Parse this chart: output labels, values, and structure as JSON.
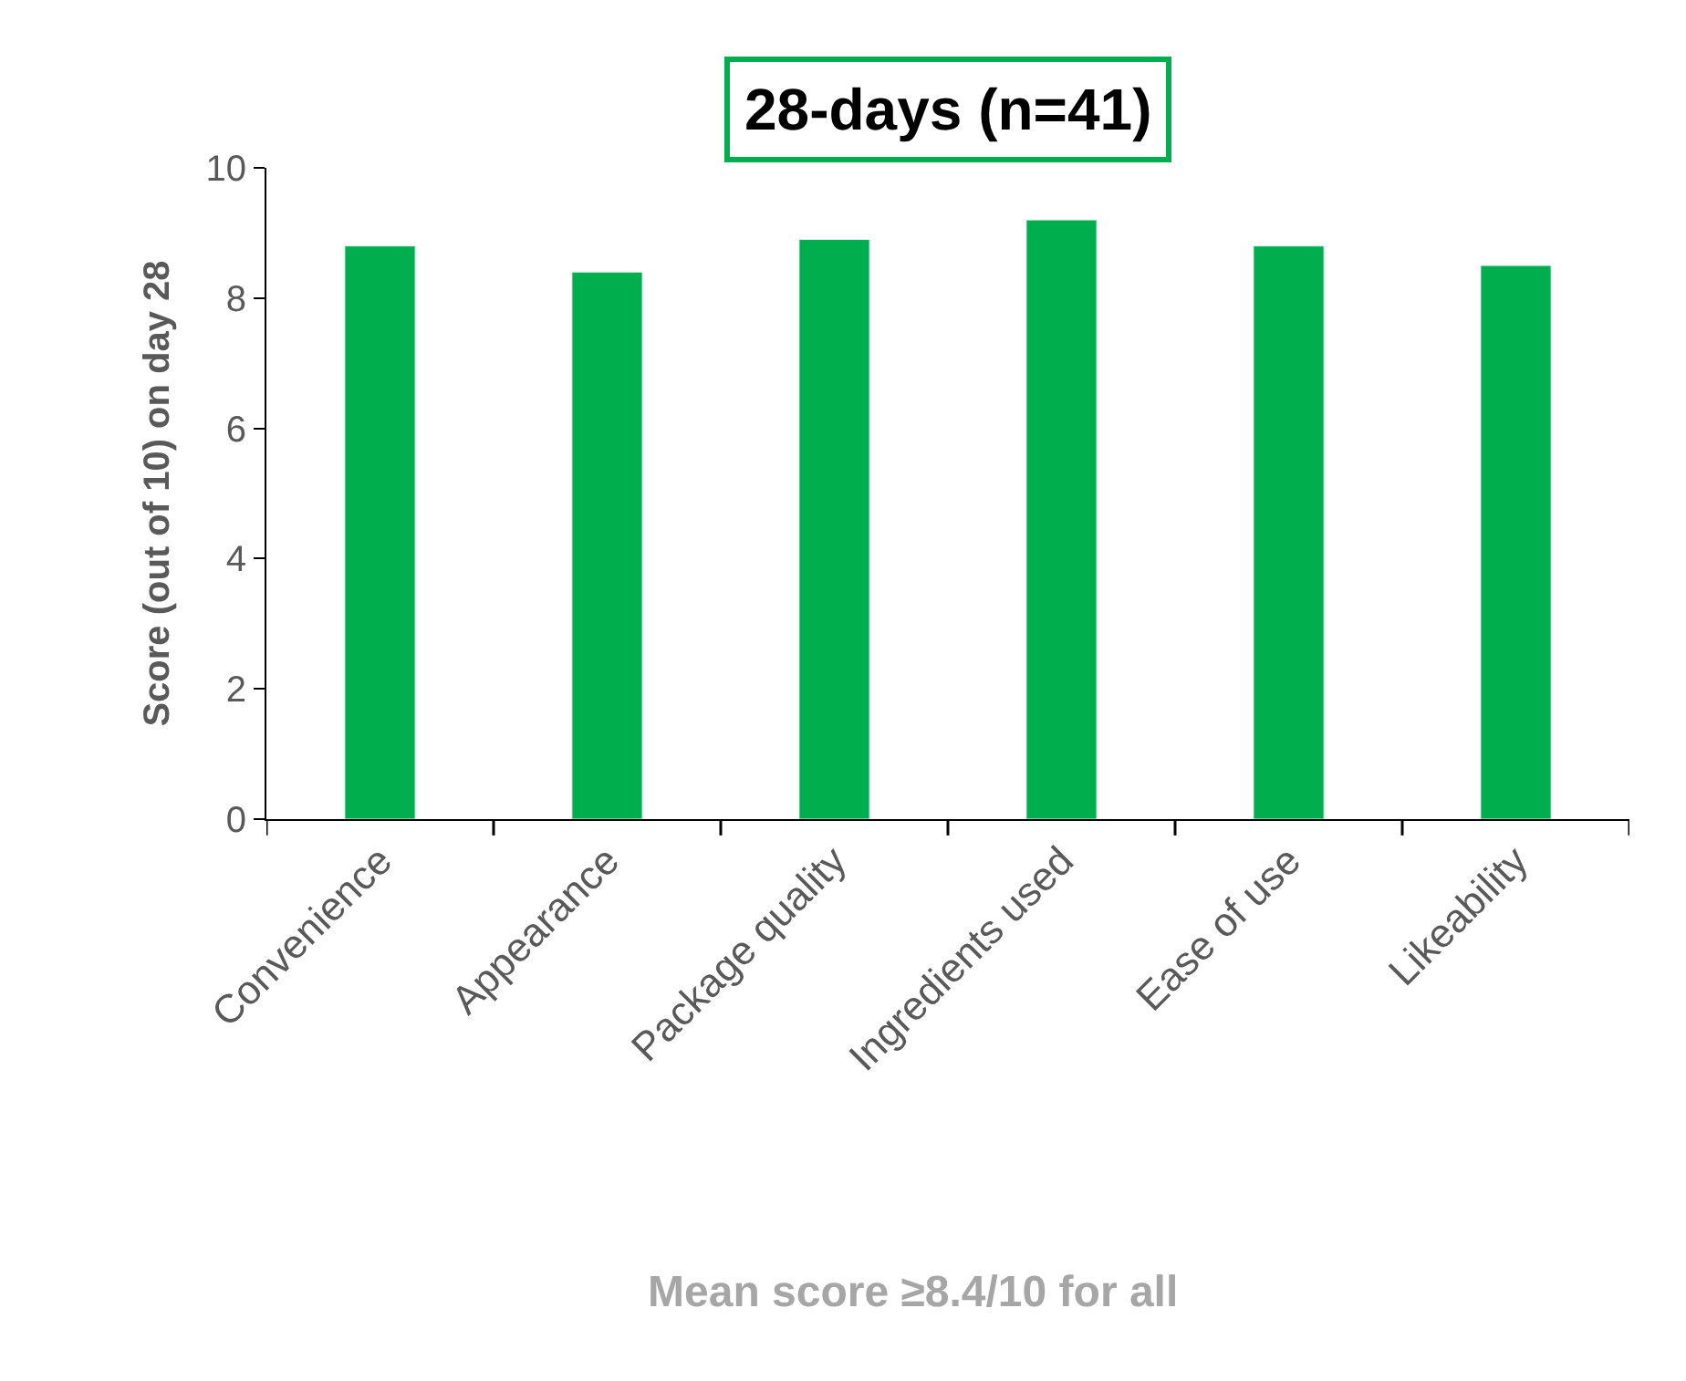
{
  "chart_data": {
    "type": "bar",
    "title": "28-days (n=41)",
    "ylabel": "Score (out of 10) on day 28",
    "categories": [
      "Convenience",
      "Appearance",
      "Package quality",
      "Ingredients used",
      "Ease of use",
      "Likeability"
    ],
    "values": [
      8.8,
      8.4,
      8.9,
      9.2,
      8.8,
      8.5
    ],
    "color": "#00ae4d",
    "ylim": [
      0,
      10
    ],
    "yticks": [
      0,
      2,
      4,
      6,
      8,
      10
    ],
    "annotations": [
      "Mean score ≥8.4/10 for all"
    ]
  }
}
